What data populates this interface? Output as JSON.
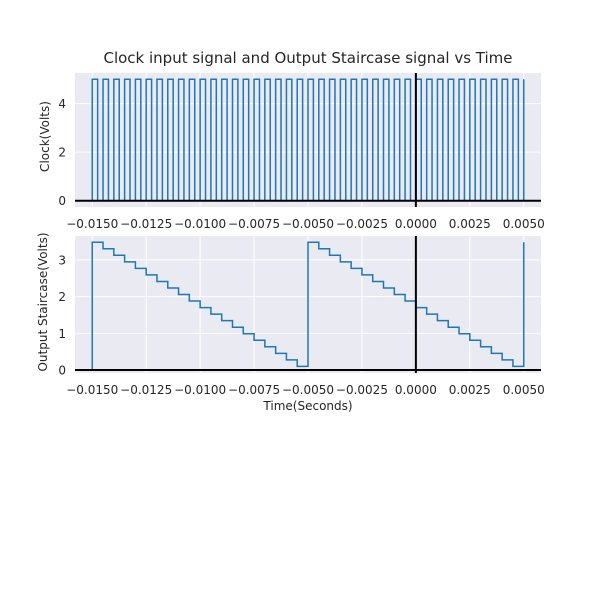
{
  "chart_data": [
    {
      "type": "line",
      "title": "Clock input signal and Output Staircase signal vs Time",
      "xlabel": "",
      "ylabel": "Clock(Volts)",
      "xlim": [
        -0.0158,
        0.0058
      ],
      "ylim": [
        -0.26,
        5.26
      ],
      "grid": true,
      "x_ticks": [
        "−0.0150",
        "−0.0125",
        "−0.0100",
        "−0.0075",
        "−0.0050",
        "−0.0025",
        "0.0000",
        "0.0025",
        "0.0050"
      ],
      "x_tick_values": [
        -0.015,
        -0.0125,
        -0.01,
        -0.0075,
        -0.005,
        -0.0025,
        0.0,
        0.0025,
        0.005
      ],
      "y_ticks": [
        "0",
        "2",
        "4"
      ],
      "y_tick_values": [
        0,
        2,
        4
      ],
      "signal": {
        "kind": "square_wave",
        "t_start": -0.015,
        "t_end": 0.005,
        "period": 0.0005,
        "low": 0.0,
        "high": 5.0
      },
      "line_color": "#1f77b4"
    },
    {
      "type": "line",
      "title": "",
      "xlabel": "Time(Seconds)",
      "ylabel": "Output Staircase(Volts)",
      "xlim": [
        -0.0158,
        0.0058
      ],
      "ylim": [
        -0.08,
        3.65
      ],
      "grid": true,
      "x_ticks": [
        "−0.0150",
        "−0.0125",
        "−0.0100",
        "−0.0075",
        "−0.0050",
        "−0.0025",
        "0.0000",
        "0.0025",
        "0.0050"
      ],
      "x_tick_values": [
        -0.015,
        -0.0125,
        -0.01,
        -0.0075,
        -0.005,
        -0.0025,
        0.0,
        0.0025,
        0.005
      ],
      "y_ticks": [
        "0",
        "1",
        "2",
        "3"
      ],
      "y_tick_values": [
        0,
        1,
        2,
        3
      ],
      "signal": {
        "kind": "staircase",
        "t_start": -0.015,
        "t_end": 0.005,
        "cycle_length": 0.01,
        "step_duration": 0.0005,
        "high": 3.48,
        "low": 0.1
      },
      "line_color": "#1f77b4"
    }
  ]
}
